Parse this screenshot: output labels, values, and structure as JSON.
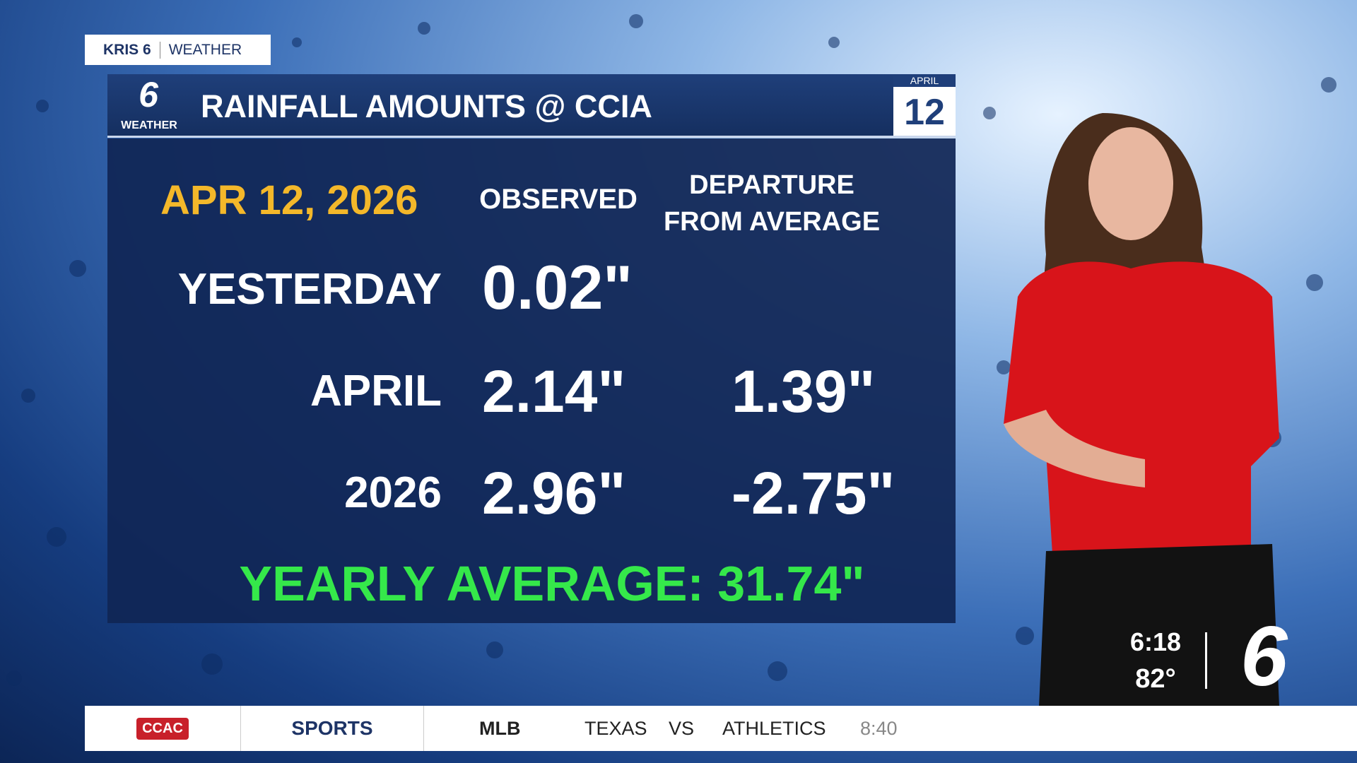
{
  "header": {
    "brand": "KRIS 6",
    "section": "WEATHER"
  },
  "logo": {
    "number": "6",
    "label": "WEATHER"
  },
  "title": "RAINFALL AMOUNTS @ CCIA",
  "date_badge": {
    "month": "APRIL",
    "day": "12"
  },
  "table": {
    "date": "APR 12, 2026",
    "columns": [
      "OBSERVED",
      "DEPARTURE FROM AVERAGE"
    ],
    "rows": [
      {
        "label": "YESTERDAY",
        "observed": "0.02\""
      },
      {
        "label": "APRIL",
        "observed": "2.14\"",
        "departure": "1.39\""
      },
      {
        "label": "2026",
        "observed": "2.96\"",
        "departure": "-2.75\""
      }
    ],
    "footer": "YEARLY AVERAGE: 31.74\""
  },
  "ticker": {
    "sponsor": "CCAC",
    "category": "SPORTS",
    "league": "MLB",
    "away": "TEXAS",
    "vs": "VS",
    "home": "ATHLETICS",
    "time": "8:40"
  },
  "clock": {
    "time": "6:18",
    "temp": "82°"
  },
  "station_logo": "6"
}
